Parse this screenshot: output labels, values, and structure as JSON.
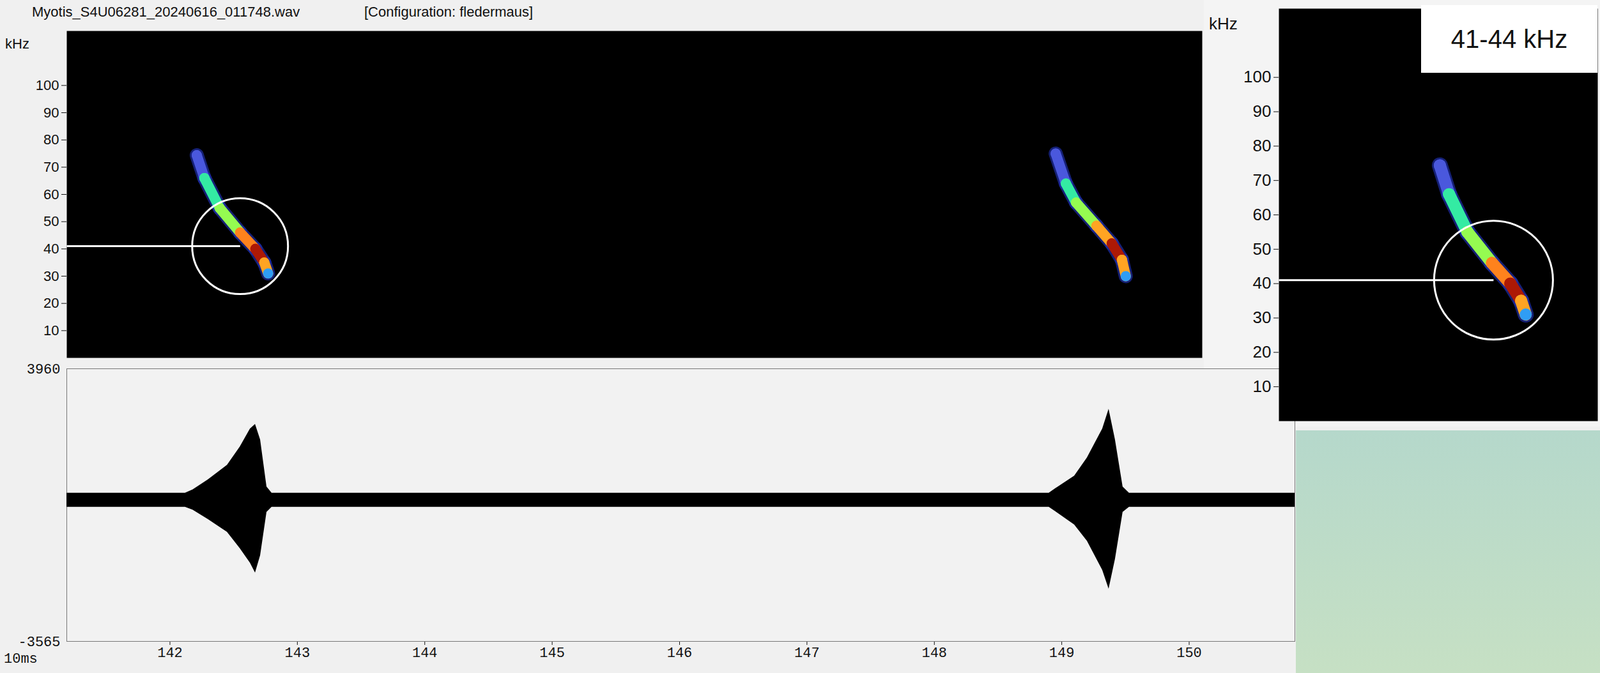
{
  "chart_data": [
    {
      "type": "spectrogram",
      "title": "Myotis_S4U06281_20240616_011748.wav",
      "subtitle": "[Configuration: fledermaus]",
      "y_label": "kHz",
      "xlim": [
        141.19,
        150.1
      ],
      "ylim": [
        0,
        120
      ],
      "yticks": [
        10,
        20,
        30,
        40,
        50,
        60,
        70,
        80,
        90,
        100
      ],
      "tick_labels": "y",
      "color": "turbo",
      "intensity_range": [
        0,
        1
      ],
      "series": [
        {
          "x": [
            142.21,
            142.27,
            142.39,
            142.55,
            142.67,
            142.74,
            142.77
          ],
          "values": [
            74.4,
            66,
            55,
            46,
            40,
            35,
            31
          ],
          "intensity": [
            0.1,
            0.35,
            0.5,
            0.75,
            0.92,
            0.7,
            0.2
          ]
        },
        {
          "x": [
            148.95,
            149.03,
            149.11,
            149.27,
            149.39,
            149.47,
            149.5
          ],
          "values": [
            75,
            64,
            57,
            48.5,
            42,
            36,
            30
          ],
          "intensity": [
            0.1,
            0.35,
            0.5,
            0.7,
            0.92,
            0.7,
            0.2
          ]
        }
      ],
      "annotations": [
        {
          "x": 142.55,
          "y": 41
        }
      ]
    },
    {
      "type": "waveform",
      "x_label": "10ms",
      "xlim": [
        141.19,
        150.83
      ],
      "ylim": [
        -3565,
        3960
      ],
      "xticks": [
        142,
        143,
        144,
        145,
        146,
        147,
        148,
        149,
        150
      ],
      "yticks": [
        -3565,
        3960
      ],
      "color": "black",
      "x": [
        141.19,
        142.12,
        142.18,
        142.3,
        142.45,
        142.55,
        142.63,
        142.67,
        142.71,
        142.76,
        142.8,
        148.9,
        148.95,
        149.1,
        149.2,
        149.32,
        149.37,
        149.42,
        149.48,
        149.53,
        150.83
      ],
      "upper": [
        530,
        530,
        620,
        900,
        1300,
        1800,
        2300,
        2426,
        2000,
        700,
        530,
        530,
        650,
        1000,
        1500,
        2300,
        2844,
        2000,
        700,
        530,
        530
      ],
      "lower": [
        140,
        140,
        60,
        -200,
        -550,
        -1000,
        -1400,
        -1676,
        -1200,
        0,
        140,
        140,
        20,
        -350,
        -800,
        -1600,
        -2122,
        -1300,
        0,
        140,
        140
      ]
    },
    {
      "type": "spectrogram",
      "y_label": "kHz",
      "xlim": [
        141.16,
        143.24
      ],
      "ylim": [
        0,
        120
      ],
      "yticks": [
        10,
        20,
        30,
        40,
        50,
        60,
        70,
        80,
        90,
        100
      ],
      "tick_labels": "y",
      "color": "turbo",
      "intensity_range": [
        0,
        1
      ],
      "series": [
        {
          "x": [
            142.21,
            142.27,
            142.39,
            142.55,
            142.67,
            142.74,
            142.77
          ],
          "values": [
            74.4,
            66,
            55,
            46,
            40,
            35,
            31
          ],
          "intensity": [
            0.1,
            0.35,
            0.5,
            0.75,
            0.92,
            0.7,
            0.2
          ]
        }
      ],
      "annotations": [
        {
          "text": "41-44 kHz",
          "x": 142.56,
          "y": 41
        }
      ]
    }
  ]
}
